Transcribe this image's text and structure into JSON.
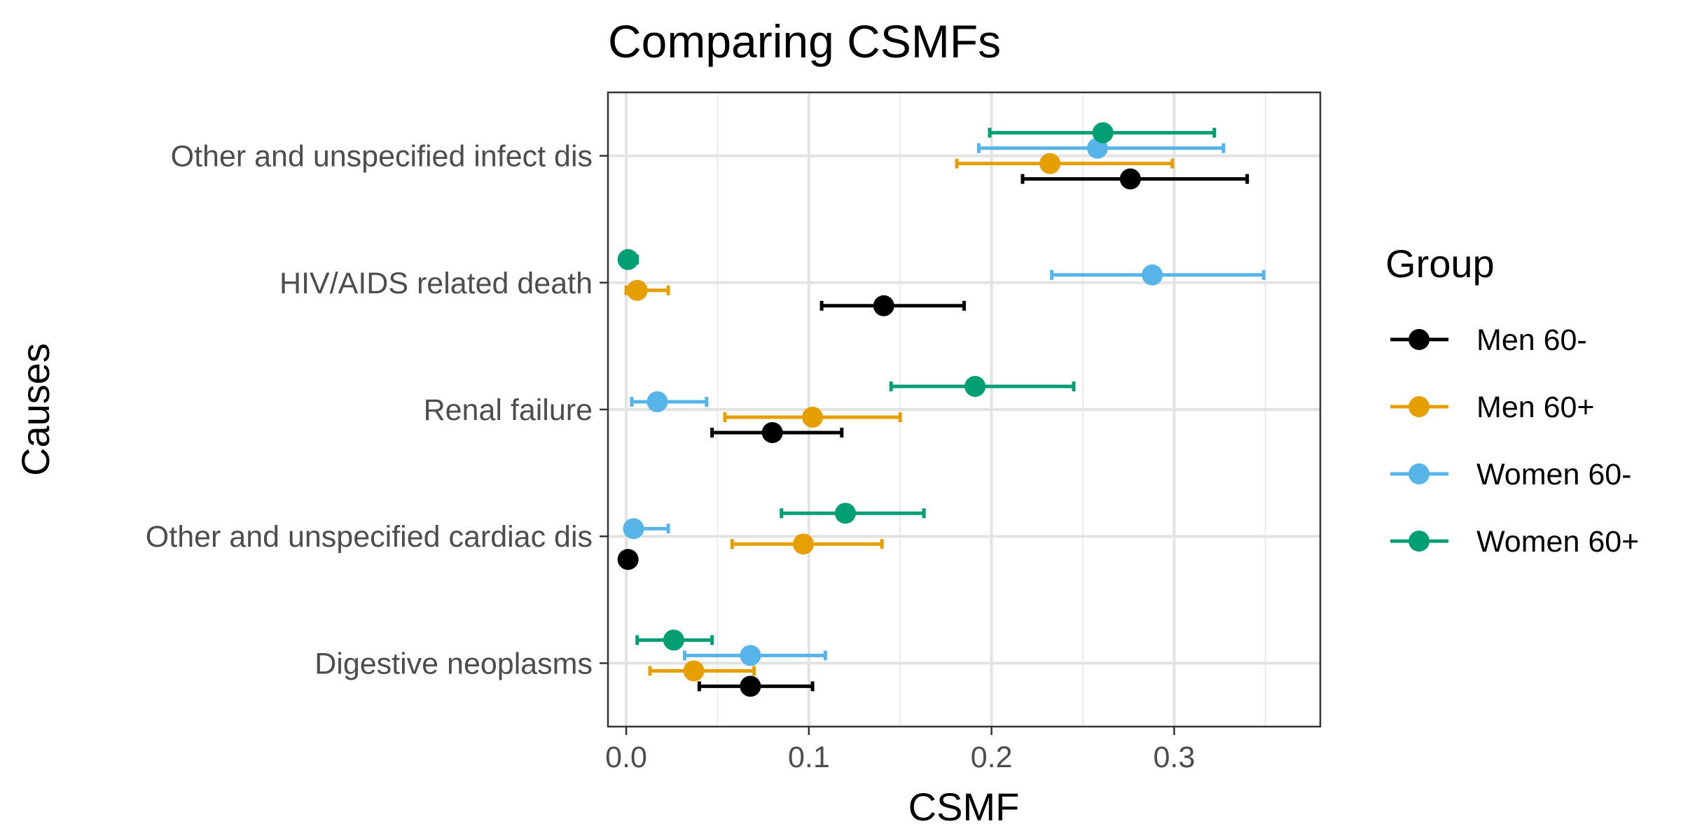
{
  "chart_data": {
    "type": "scatter",
    "subtype": "dot-with-error-bars",
    "orientation": "horizontal",
    "title": "Comparing CSMFs",
    "xlabel": "CSMF",
    "ylabel": "Causes",
    "xlim": [
      -0.01,
      0.38
    ],
    "x_ticks": [
      0.0,
      0.1,
      0.2,
      0.3
    ],
    "x_tick_labels": [
      "0.0",
      "0.1",
      "0.2",
      "0.3"
    ],
    "grid": true,
    "legend_title": "Group",
    "legend_position": "right",
    "categories": [
      "Other and unspecified infect dis",
      "HIV/AIDS related death",
      "Renal failure",
      "Other and unspecified cardiac dis",
      "Digestive neoplasms"
    ],
    "series": [
      {
        "name": "Men 60-",
        "color": "#000000",
        "points": [
          {
            "category": "Other and unspecified infect dis",
            "value": 0.276,
            "lower": 0.217,
            "upper": 0.34
          },
          {
            "category": "HIV/AIDS related death",
            "value": 0.141,
            "lower": 0.107,
            "upper": 0.185
          },
          {
            "category": "Renal failure",
            "value": 0.08,
            "lower": 0.047,
            "upper": 0.118
          },
          {
            "category": "Other and unspecified cardiac dis",
            "value": 0.001,
            "lower": 0.001,
            "upper": 0.001
          },
          {
            "category": "Digestive neoplasms",
            "value": 0.068,
            "lower": 0.04,
            "upper": 0.102
          }
        ]
      },
      {
        "name": "Men 60+",
        "color": "#E69F00",
        "points": [
          {
            "category": "Other and unspecified infect dis",
            "value": 0.232,
            "lower": 0.181,
            "upper": 0.299
          },
          {
            "category": "HIV/AIDS related death",
            "value": 0.006,
            "lower": 0.0,
            "upper": 0.023
          },
          {
            "category": "Renal failure",
            "value": 0.102,
            "lower": 0.054,
            "upper": 0.15
          },
          {
            "category": "Other and unspecified cardiac dis",
            "value": 0.097,
            "lower": 0.058,
            "upper": 0.14
          },
          {
            "category": "Digestive neoplasms",
            "value": 0.037,
            "lower": 0.013,
            "upper": 0.07
          }
        ]
      },
      {
        "name": "Women 60-",
        "color": "#56B4E9",
        "points": [
          {
            "category": "Other and unspecified infect dis",
            "value": 0.258,
            "lower": 0.193,
            "upper": 0.327
          },
          {
            "category": "HIV/AIDS related death",
            "value": 0.288,
            "lower": 0.233,
            "upper": 0.349
          },
          {
            "category": "Renal failure",
            "value": 0.017,
            "lower": 0.003,
            "upper": 0.044
          },
          {
            "category": "Other and unspecified cardiac dis",
            "value": 0.004,
            "lower": 0.0,
            "upper": 0.023
          },
          {
            "category": "Digestive neoplasms",
            "value": 0.068,
            "lower": 0.032,
            "upper": 0.109
          }
        ]
      },
      {
        "name": "Women 60+",
        "color": "#009E73",
        "points": [
          {
            "category": "Other and unspecified infect dis",
            "value": 0.261,
            "lower": 0.199,
            "upper": 0.322
          },
          {
            "category": "HIV/AIDS related death",
            "value": 0.001,
            "lower": 0.0,
            "upper": 0.006
          },
          {
            "category": "Renal failure",
            "value": 0.191,
            "lower": 0.145,
            "upper": 0.245
          },
          {
            "category": "Other and unspecified cardiac dis",
            "value": 0.12,
            "lower": 0.085,
            "upper": 0.163
          },
          {
            "category": "Digestive neoplasms",
            "value": 0.026,
            "lower": 0.006,
            "upper": 0.047
          }
        ]
      }
    ]
  }
}
